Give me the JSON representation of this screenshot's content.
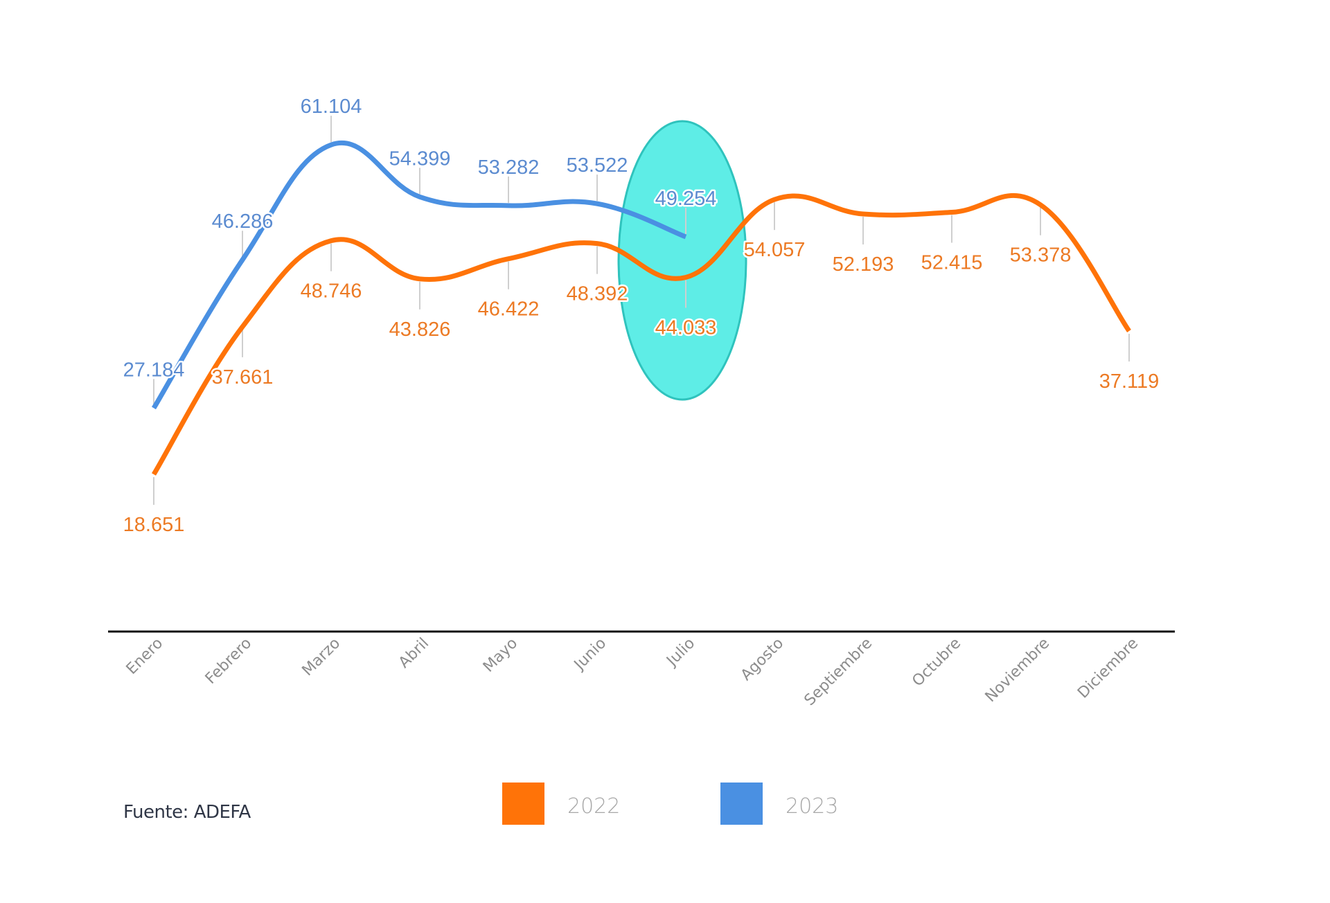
{
  "chart_data": {
    "type": "line",
    "title": "",
    "xlabel": "",
    "ylabel": "",
    "categories": [
      "Enero",
      "Febrero",
      "Marzo",
      "Abril",
      "Mayo",
      "Junio",
      "Julio",
      "Agosto",
      "Septiembre",
      "Octubre",
      "Noviembre",
      "Diciembre"
    ],
    "series": [
      {
        "name": "2022",
        "color": "#ff7308",
        "label_color": "#ec7a24",
        "values": [
          18651,
          37661,
          48746,
          43826,
          46422,
          48392,
          44033,
          54057,
          52193,
          52415,
          53378,
          37119
        ],
        "value_labels": [
          "18.651",
          "37.661",
          "48.746",
          "43.826",
          "46.422",
          "48.392",
          "44.033",
          "54.057",
          "52.193",
          "52.415",
          "53.378",
          "37.119"
        ],
        "label_position": "below"
      },
      {
        "name": "2023",
        "color": "#4a90e2",
        "label_color": "#5b8bd0",
        "values": [
          27184,
          46286,
          61104,
          54399,
          53282,
          53522,
          49254
        ],
        "value_labels": [
          "27.184",
          "46.286",
          "61.104",
          "54.399",
          "53.282",
          "53.522",
          "49.254"
        ],
        "label_position": "above"
      }
    ],
    "y_axis_visible": false,
    "grid": false,
    "smooth": true,
    "legend": {
      "position": "bottom-center",
      "entries": [
        {
          "label": "2022",
          "color": "#ff7308"
        },
        {
          "label": "2023",
          "color": "#4a90e2"
        }
      ]
    },
    "annotations": [
      {
        "type": "ellipse-highlight",
        "category": "Julio",
        "fill": "#5eede6",
        "stroke": "#2fc3bd"
      }
    ],
    "source": "Fuente: ADEFA",
    "x_label_rotation_deg": -45
  }
}
